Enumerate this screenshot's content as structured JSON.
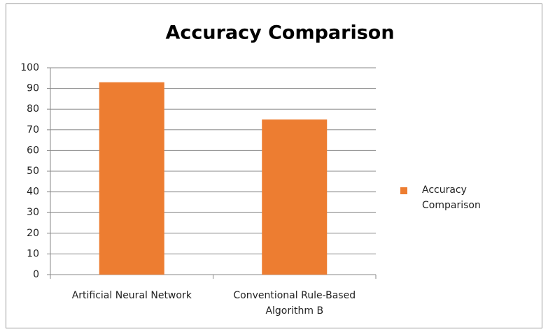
{
  "chart_data": {
    "type": "bar",
    "title": "Accuracy Comparison",
    "categories": [
      "Artificial Neural Network",
      "Conventional Rule-Based Algorithm B"
    ],
    "series": [
      {
        "name": "Accuracy Comparison",
        "color": "#ed7d31",
        "values": [
          93,
          75
        ]
      }
    ],
    "ylim": [
      0,
      100
    ],
    "yticks": [
      0,
      10,
      20,
      30,
      40,
      50,
      60,
      70,
      80,
      90,
      100
    ],
    "grid": true,
    "legend": "right"
  }
}
